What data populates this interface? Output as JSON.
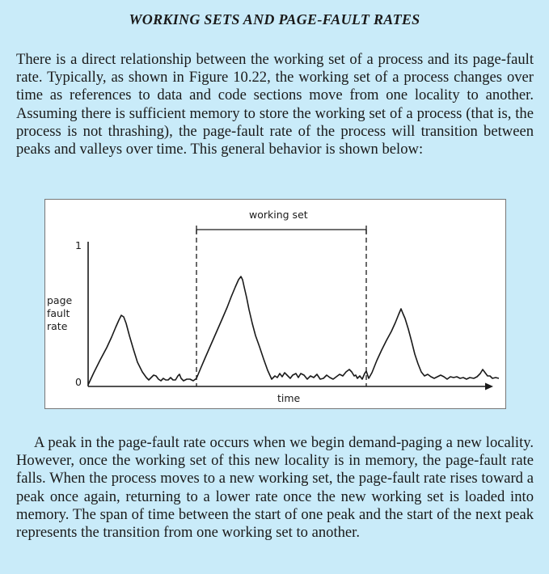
{
  "title": "WORKING SETS AND PAGE-FAULT RATES",
  "paragraph1": "There is a direct relationship between the working set of a process and its page-fault rate. Typically, as shown in Figure 10.22, the working set of a process changes over time as references to data and code sections move from one locality to another. Assuming there is sufficient memory to store the working set of a process (that is, the process is not thrashing), the page-fault rate of the process will transition between peaks and valleys over time. This general behavior is shown below:",
  "paragraph2": "A peak in the page-fault rate occurs when we begin demand-paging a new locality. However, once the working set of this new locality is in memory, the page-fault rate falls. When the process moves to a new working set, the page-fault rate rises toward a peak once again, returning to a lower rate once the new working set is loaded into memory. The span of time between the start of one peak and the start of the next peak represents the transition from one working set to another.",
  "figure": {
    "bracket_label": "working set",
    "ylabel_lines": [
      "page",
      "fault",
      "rate"
    ],
    "xlabel": "time",
    "y_tick_top": "1",
    "y_tick_bottom": "0"
  }
}
